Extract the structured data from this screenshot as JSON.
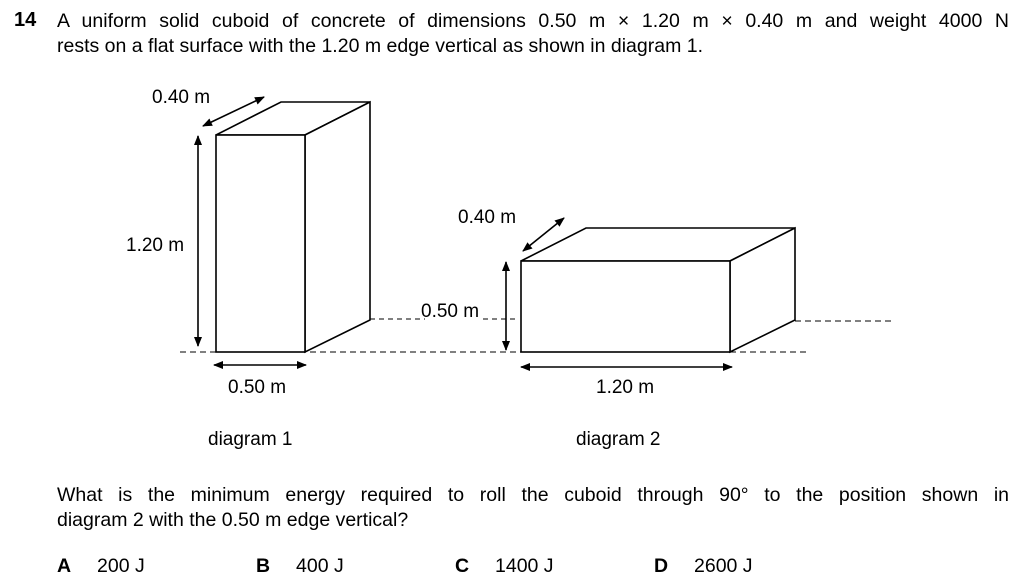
{
  "question": {
    "number": "14",
    "stem_line1": "A uniform solid cuboid of concrete of dimensions 0.50 m × 1.20 m × 0.40 m and weight 4000 N",
    "stem_line2": "rests on a flat surface with the 1.20 m edge vertical as shown in diagram 1.",
    "prompt_line1": "What is the minimum energy required to roll the cuboid through 90° to the position shown in",
    "prompt_line2": "diagram 2 with the 0.50 m edge vertical?"
  },
  "diagram1": {
    "caption": "diagram 1",
    "depth_label": "0.40 m",
    "height_label": "1.20 m",
    "width_label": "0.50 m"
  },
  "diagram2": {
    "caption": "diagram 2",
    "depth_label": "0.40 m",
    "height_label": "0.50 m",
    "width_label": "1.20 m"
  },
  "options": [
    {
      "letter": "A",
      "text": "200 J"
    },
    {
      "letter": "B",
      "text": "400 J"
    },
    {
      "letter": "C",
      "text": "1400 J"
    },
    {
      "letter": "D",
      "text": "2600 J"
    }
  ]
}
